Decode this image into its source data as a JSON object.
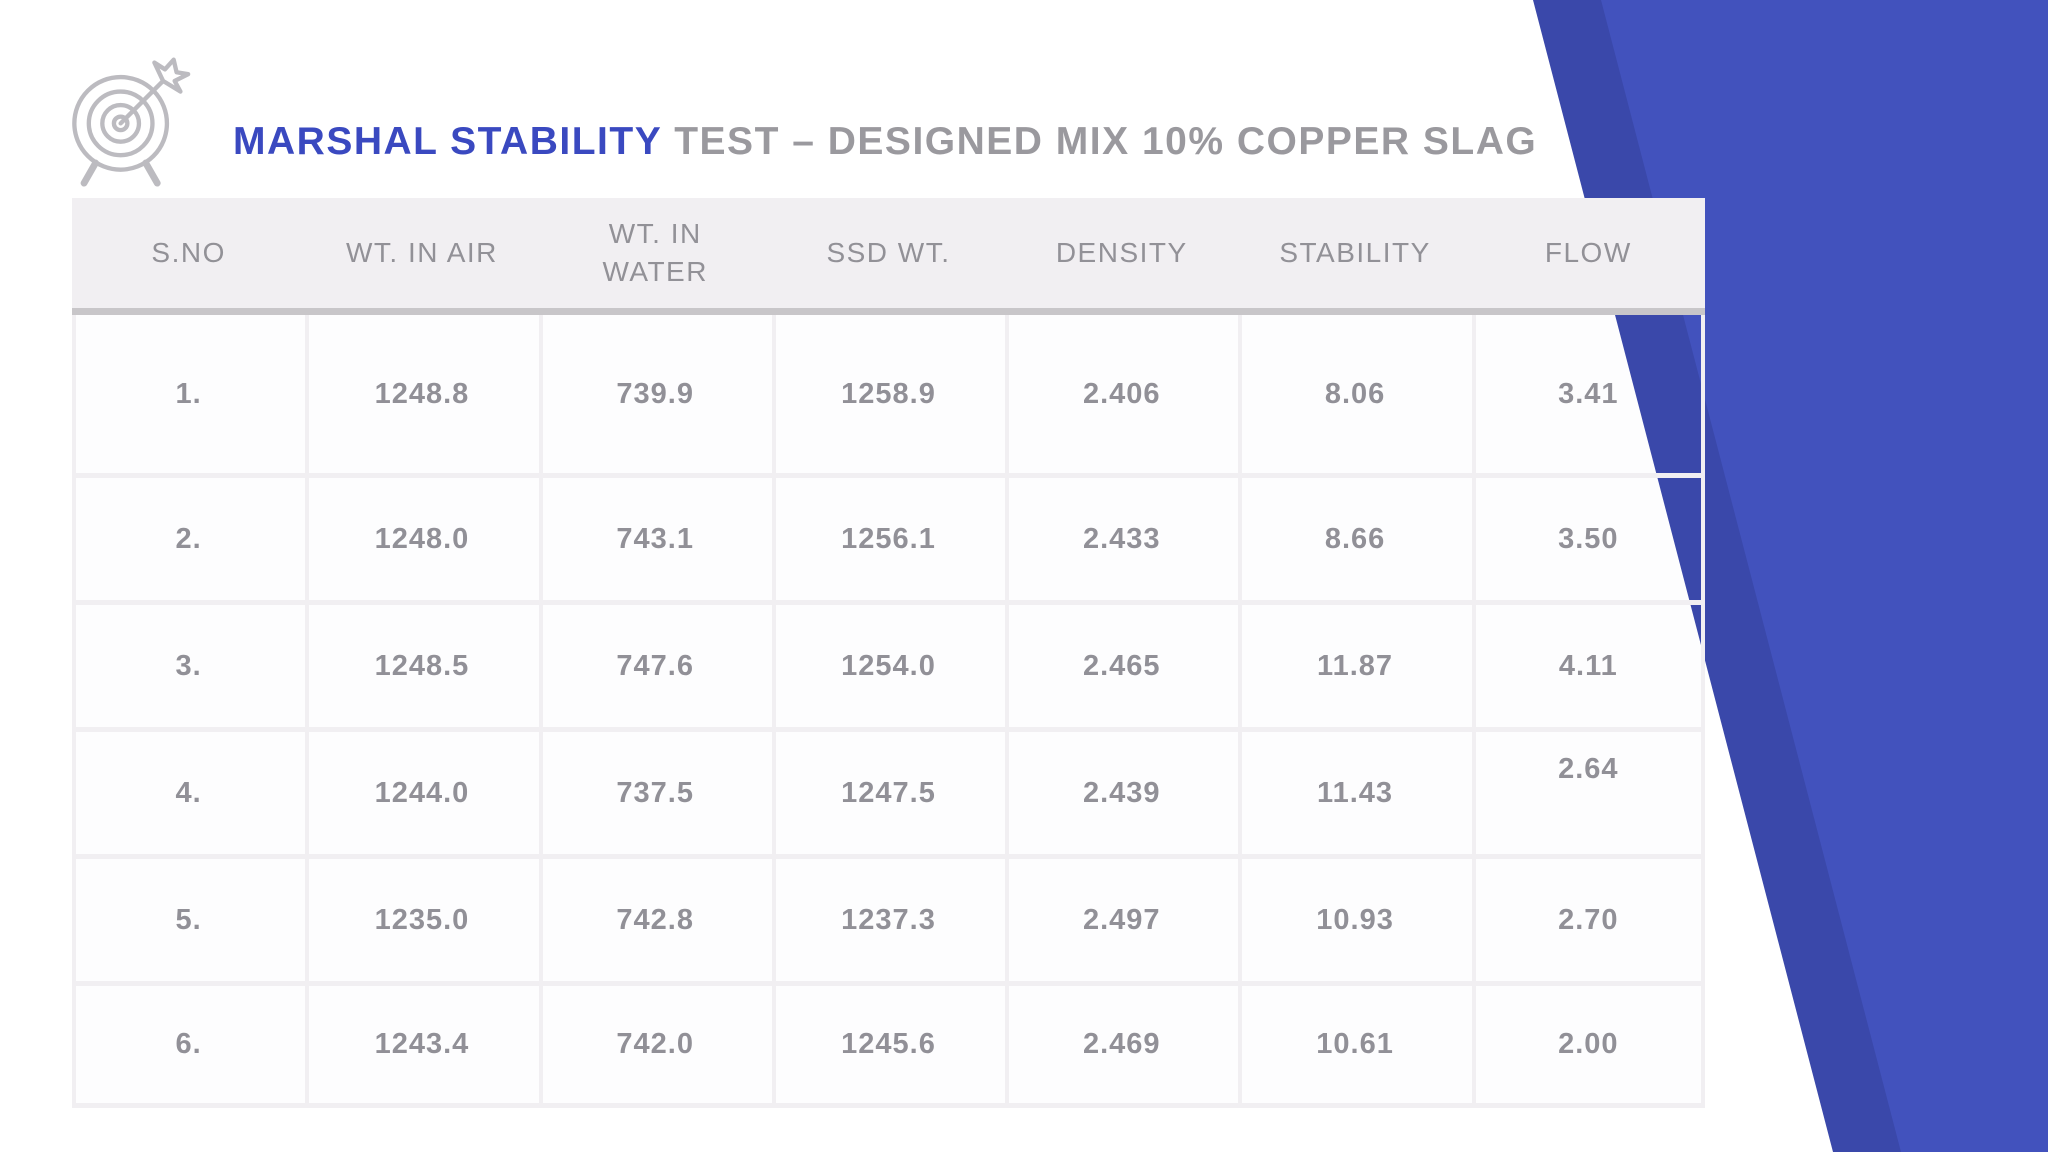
{
  "slide": {
    "title": {
      "highlight": "MARSHAL STABILITY",
      "rest": "TEST – DESIGNED MIX 10% COPPER SLAG"
    },
    "decor": {
      "icon": "target-dart-icon",
      "accent_blue": "#4252bd",
      "accent_blue_dark": "#3a48aa",
      "header_gray": "#f1eff2",
      "text_gray": "#919097"
    }
  },
  "table": {
    "columns": [
      {
        "label": "S.NO"
      },
      {
        "label": "WT. IN AIR"
      },
      {
        "label": "WT. IN WATER",
        "wrap": true
      },
      {
        "label": "SSD WT."
      },
      {
        "label": "DENSITY"
      },
      {
        "label": "STABILITY"
      },
      {
        "label": "FLOW"
      }
    ],
    "rows": [
      [
        "1.",
        "1248.8",
        "739.9",
        "1258.9",
        "2.406",
        "8.06",
        "3.41"
      ],
      [
        "2.",
        "1248.0",
        "743.1",
        "1256.1",
        "2.433",
        "8.66",
        "3.50"
      ],
      [
        "3.",
        "1248.5",
        "747.6",
        "1254.0",
        "2.465",
        "11.87",
        "4.11"
      ],
      [
        "4.",
        "1244.0",
        "737.5",
        "1247.5",
        "2.439",
        "11.43",
        "2.64"
      ],
      [
        "5.",
        "1235.0",
        "742.8",
        "1237.3",
        "2.497",
        "10.93",
        "2.70"
      ],
      [
        "6.",
        "1243.4",
        "742.0",
        "1245.6",
        "2.469",
        "10.61",
        "2.00"
      ]
    ]
  }
}
